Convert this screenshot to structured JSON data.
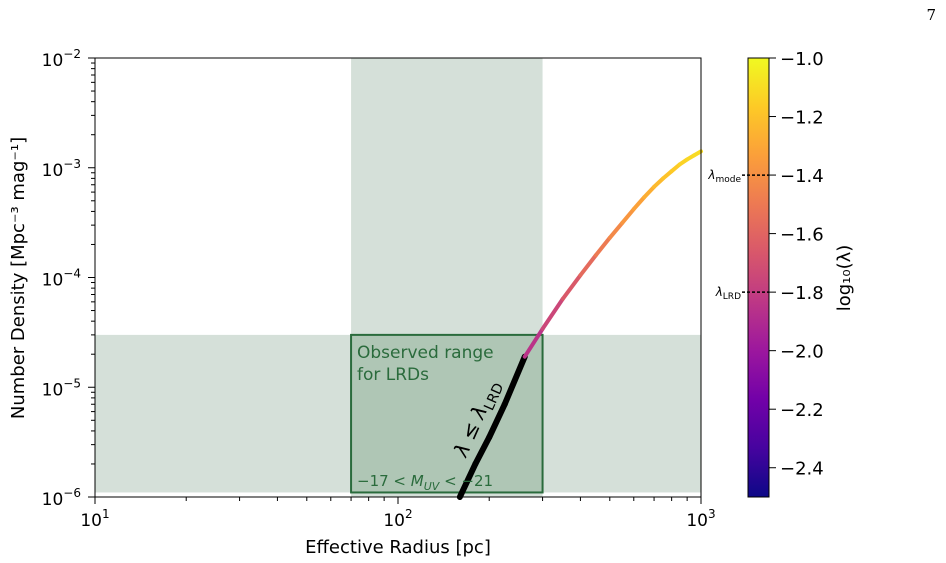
{
  "page_number": "7",
  "chart_data": {
    "type": "line",
    "xlabel": "Effective Radius [pc]",
    "ylabel": "Number Density [Mpc⁻³ mag⁻¹]",
    "xscale": "log",
    "yscale": "log",
    "xlim": [
      10,
      1000
    ],
    "ylim": [
      1e-06,
      0.01
    ],
    "x_ticks": [
      {
        "value": 10,
        "base": "10",
        "exp": "1"
      },
      {
        "value": 100,
        "base": "10",
        "exp": "2"
      },
      {
        "value": 1000,
        "base": "10",
        "exp": "3"
      }
    ],
    "y_ticks": [
      {
        "value": 1e-06,
        "base": "10",
        "exp": "−6"
      },
      {
        "value": 1e-05,
        "base": "10",
        "exp": "−5"
      },
      {
        "value": 0.0001,
        "base": "10",
        "exp": "−4"
      },
      {
        "value": 0.001,
        "base": "10",
        "exp": "−3"
      },
      {
        "value": 0.01,
        "base": "10",
        "exp": "−2"
      }
    ],
    "curve": {
      "x": [
        160,
        180,
        200,
        225,
        262,
        300,
        350,
        400,
        450,
        500,
        550,
        600,
        650,
        700,
        750,
        800,
        850,
        900,
        950,
        1000
      ],
      "y": [
        1e-06,
        2e-06,
        3.5e-06,
        7e-06,
        1.9e-05,
        3.4e-05,
        6.4e-05,
        0.000105,
        0.00016,
        0.00023,
        0.000315,
        0.00042,
        0.00054,
        0.00067,
        0.0008,
        0.00093,
        0.00107,
        0.00119,
        0.0013,
        0.00141
      ],
      "log10_lambda": [
        -2.25,
        -2.19,
        -2.13,
        -2.05,
        -1.9,
        -1.8,
        -1.7,
        -1.61,
        -1.53,
        -1.46,
        -1.4,
        -1.35,
        -1.3,
        -1.25,
        -1.21,
        -1.18,
        -1.15,
        -1.13,
        -1.11,
        -1.1
      ],
      "highlight_until_x": 262,
      "highlight_color": "#000000"
    },
    "shaded_regions": [
      {
        "orientation": "vertical",
        "x0": 70,
        "x1": 300,
        "color": "#d5e0d9"
      },
      {
        "orientation": "horizontal",
        "y0": 1.1e-06,
        "y1": 3e-05,
        "color": "#d5e0d9"
      }
    ],
    "observed_box": {
      "x0": 70,
      "x1": 300,
      "y0": 1.1e-06,
      "y1": 3e-05,
      "fill": "#afc6b5",
      "edge": "#2a6b3c",
      "label_line1": "Observed range",
      "label_line2": "for LRDs",
      "mag_label": {
        "prefix": "−17 < ",
        "sym": "M",
        "sub": "UV",
        "suffix": " < −21"
      }
    },
    "curve_label": {
      "sym": "λ",
      "op": " ≤ ",
      "sub": "LRD"
    },
    "colorbar": {
      "label": "log₁₀(λ)",
      "min": -2.5,
      "max": -1.0,
      "ticks": [
        {
          "value": -2.4,
          "label": "−2.4"
        },
        {
          "value": -2.2,
          "label": "−2.2"
        },
        {
          "value": -2.0,
          "label": "−2.0"
        },
        {
          "value": -1.8,
          "label": "−1.8"
        },
        {
          "value": -1.6,
          "label": "−1.6"
        },
        {
          "value": -1.4,
          "label": "−1.4"
        },
        {
          "value": -1.2,
          "label": "−1.2"
        },
        {
          "value": -1.0,
          "label": "−1.0"
        }
      ],
      "markers": [
        {
          "value": -1.4,
          "sym": "λ",
          "sub": "mode"
        },
        {
          "value": -1.8,
          "sym": "λ",
          "sub": "LRD"
        }
      ],
      "colormap": [
        "#0d0887",
        "#46039f",
        "#7201a8",
        "#9c179e",
        "#bd3786",
        "#d8576b",
        "#ed7953",
        "#fb9f3a",
        "#fdca26",
        "#f0f921"
      ]
    }
  }
}
